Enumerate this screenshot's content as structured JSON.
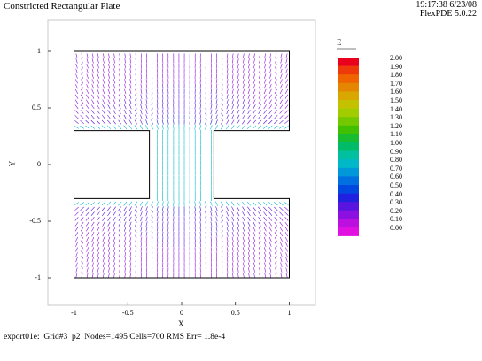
{
  "header": {
    "title": "Constricted Rectangular Plate",
    "time_date": "19:17:38 6/23/08",
    "version": "FlexPDE 5.0.22"
  },
  "plot": {
    "xlabel": "X",
    "ylabel": "Y",
    "xticks": [
      "-1",
      "-0.5",
      "0",
      "0.5",
      "1"
    ],
    "yticks": [
      "1",
      "0.5",
      "0",
      "-0.5",
      "-1"
    ],
    "xlim": [
      -1.25,
      1.25
    ],
    "ylim": [
      -1.25,
      1.25
    ]
  },
  "legend": {
    "title": "E",
    "values": [
      "2.00",
      "1.90",
      "1.80",
      "1.70",
      "1.60",
      "1.50",
      "1.40",
      "1.30",
      "1.20",
      "1.10",
      "1.00",
      "0.90",
      "0.80",
      "0.70",
      "0.60",
      "0.50",
      "0.40",
      "0.30",
      "0.20",
      "0.10",
      "0.00"
    ],
    "colors": [
      "#e8001c",
      "#ee3a0a",
      "#f06400",
      "#e48600",
      "#d8a800",
      "#c4c200",
      "#a0cc00",
      "#74c800",
      "#40c000",
      "#18bc30",
      "#00bc68",
      "#00c0a0",
      "#00b8c8",
      "#0098d8",
      "#0070e0",
      "#0048e0",
      "#2020e0",
      "#5a14e0",
      "#8c10e0",
      "#bc10e0",
      "#e010e0"
    ]
  },
  "footer": "export01e:  Grid#3  p2  Nodes=1495 Cells=700 RMS Err= 1.8e-4"
}
